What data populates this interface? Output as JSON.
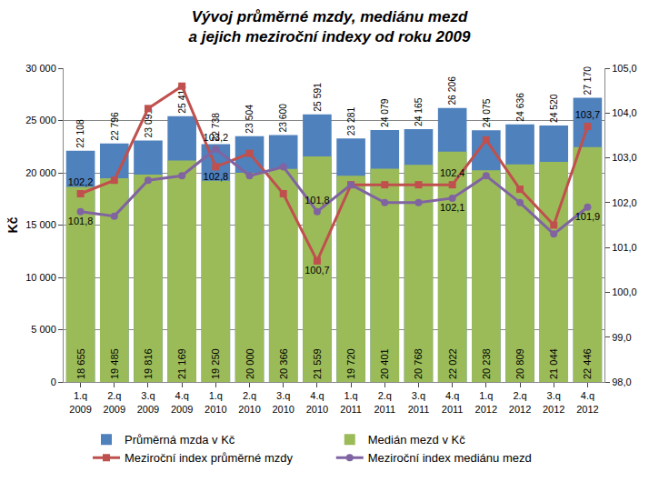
{
  "chart_data": {
    "type": "bar",
    "title": "Vývoj průměrné mzdy, mediánu mezd\na jejich meziroční indexy od roku 2009",
    "ylabel": "Kč",
    "categories": [
      "1.q 2009",
      "2.q 2009",
      "3.q 2009",
      "4.q 2009",
      "1.q 2010",
      "2.q 2010",
      "3.q 2010",
      "4.q 2010",
      "1.q 2011",
      "2.q 2011",
      "3.q 2011",
      "4.q 2011",
      "1.q 2012",
      "2.q 2012",
      "3.q 2012",
      "4.q 2012"
    ],
    "series": [
      {
        "name": "Průměrná mzda v Kč",
        "type": "bar",
        "color": "#4F81BD",
        "data_labels": true,
        "values": [
          22108,
          22796,
          23091,
          25418,
          22738,
          23504,
          23600,
          25591,
          23281,
          24079,
          24165,
          26206,
          24075,
          24636,
          24520,
          27170
        ],
        "value_labels": [
          "22 108",
          "22 796",
          "23 091",
          "25 418",
          "22 738",
          "23 504",
          "23 600",
          "25 591",
          "23 281",
          "24 079",
          "24 165",
          "26 206",
          "24 075",
          "24 636",
          "24 520",
          "27 170"
        ]
      },
      {
        "name": "Medián mezd v Kč",
        "type": "bar",
        "color": "#9BBB59",
        "data_labels": true,
        "values": [
          18655,
          19485,
          19816,
          21169,
          19250,
          20000,
          20366,
          21559,
          19720,
          20401,
          20768,
          22022,
          20238,
          20809,
          21044,
          22446
        ],
        "value_labels": [
          "18 655",
          "19 485",
          "19 816",
          "21 169",
          "19 250",
          "20 000",
          "20 366",
          "21 559",
          "19 720",
          "20 401",
          "20 768",
          "22 022",
          "20 238",
          "20 809",
          "21 044",
          "22 446"
        ]
      },
      {
        "name": "Meziroční index průměrné mzdy",
        "type": "line",
        "axis": "y2",
        "color": "#C0504D",
        "marker": "square",
        "data_labels": true,
        "values": [
          102.2,
          102.5,
          104.1,
          104.6,
          102.8,
          103.1,
          102.2,
          100.7,
          102.4,
          102.4,
          102.4,
          102.4,
          103.4,
          102.3,
          101.5,
          103.7
        ],
        "value_labels": [
          "102,2",
          null,
          null,
          null,
          "102,8",
          null,
          null,
          "100,7",
          null,
          null,
          null,
          "102,4",
          null,
          null,
          null,
          "103,7"
        ]
      },
      {
        "name": "Meziroční index mediánu mezd",
        "type": "line",
        "axis": "y2",
        "color": "#8064A2",
        "marker": "circle",
        "data_labels": true,
        "values": [
          101.8,
          101.7,
          102.5,
          102.6,
          103.2,
          102.6,
          102.8,
          101.8,
          102.4,
          102.0,
          102.0,
          102.1,
          102.6,
          102.0,
          101.3,
          101.9
        ],
        "value_labels": [
          "101,8",
          null,
          null,
          null,
          "103,2",
          null,
          null,
          "101,8",
          null,
          null,
          null,
          "102,1",
          null,
          null,
          null,
          "101,9"
        ]
      }
    ],
    "ylim": [
      0,
      30000
    ],
    "yticks": [
      0,
      {
        "value": 5000,
        "label": "5 000"
      },
      {
        "value": 10000,
        "label": "10 000"
      },
      {
        "value": 15000,
        "label": "15 000"
      },
      {
        "value": 20000,
        "label": "20 000"
      },
      {
        "value": 25000,
        "label": "25 000"
      },
      {
        "value": 30000,
        "label": "30 000"
      }
    ],
    "y2lim": [
      98,
      105
    ],
    "y2ticks": [
      {
        "value": 98,
        "label": "98,0"
      },
      {
        "value": 99,
        "label": "99,0"
      },
      {
        "value": 100,
        "label": "100,0"
      },
      {
        "value": 101,
        "label": "101,0"
      },
      {
        "value": 102,
        "label": "102,0"
      },
      {
        "value": 103,
        "label": "103,0"
      },
      {
        "value": 104,
        "label": "104,0"
      },
      {
        "value": 105,
        "label": "105,0"
      }
    ],
    "grid": true,
    "legend": "bottom",
    "stacked": false
  }
}
